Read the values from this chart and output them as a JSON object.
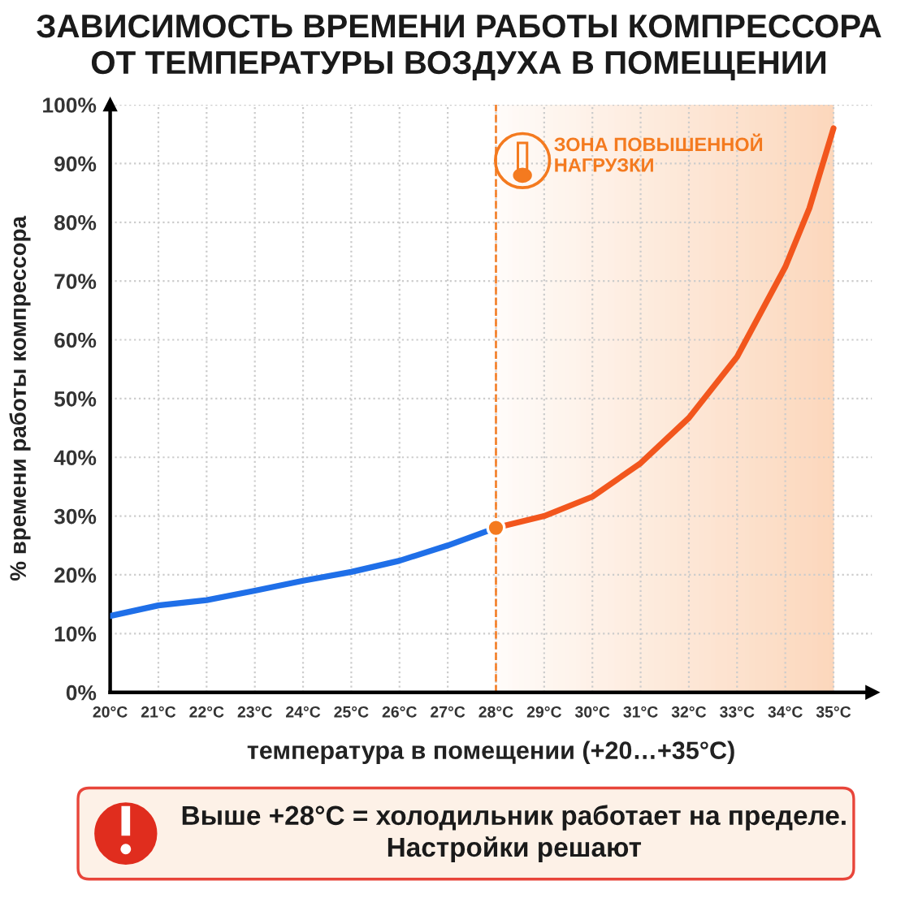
{
  "chart_data": {
    "type": "line",
    "title": "ЗАВИСИМОСТЬ ВРЕМЕНИ РАБОТЫ КОМПРЕССОРА\nОТ ТЕМПЕРАТУРЫ ВОЗДУХА В ПОМЕЩЕНИИ",
    "xlabel": "температура в помещении (+20…+35°C)",
    "ylabel": "% времени работы компрессора",
    "series": [
      {
        "color": "#1f6fe8",
        "x": [
          20,
          21,
          22,
          23,
          24,
          25,
          26,
          27,
          28
        ],
        "values": [
          13,
          14.8,
          15.7,
          17.3,
          19,
          20.5,
          22.4,
          25,
          28
        ]
      },
      {
        "color": "#f2561d",
        "x": [
          28,
          29,
          30,
          31,
          32,
          33,
          34,
          34.5,
          35
        ],
        "values": [
          28,
          30,
          33.3,
          39,
          46.7,
          57.1,
          72.4,
          82.4,
          96
        ]
      },
      {
        "type": "scatter",
        "color": "#f47a1f",
        "x": [
          28
        ],
        "values": [
          28
        ],
        "marker": "circle"
      }
    ],
    "xlim": [
      20,
      35.8
    ],
    "ylim": [
      0,
      100
    ],
    "xticks": [
      {
        "value": 20,
        "label": "20°C"
      },
      {
        "value": 21,
        "label": "21°C"
      },
      {
        "value": 22,
        "label": "22°C"
      },
      {
        "value": 23,
        "label": "23°C"
      },
      {
        "value": 24,
        "label": "24°C"
      },
      {
        "value": 25,
        "label": "25°C"
      },
      {
        "value": 26,
        "label": "26°C"
      },
      {
        "value": 27,
        "label": "27°C"
      },
      {
        "value": 28,
        "label": "28°C"
      },
      {
        "value": 29,
        "label": "29°C"
      },
      {
        "value": 30,
        "label": "30°C"
      },
      {
        "value": 31,
        "label": "31°C"
      },
      {
        "value": 32,
        "label": "32°C"
      },
      {
        "value": 33,
        "label": "33°C"
      },
      {
        "value": 34,
        "label": "34°C"
      },
      {
        "value": 35,
        "label": "35°C"
      }
    ],
    "yticks": [
      {
        "value": 0,
        "label": "0%"
      },
      {
        "value": 10,
        "label": "10%"
      },
      {
        "value": 20,
        "label": "20%"
      },
      {
        "value": 30,
        "label": "30%"
      },
      {
        "value": 40,
        "label": "40%"
      },
      {
        "value": 50,
        "label": "50%"
      },
      {
        "value": 60,
        "label": "60%"
      },
      {
        "value": 70,
        "label": "70%"
      },
      {
        "value": 80,
        "label": "80%"
      },
      {
        "value": 90,
        "label": "90%"
      },
      {
        "value": 100,
        "label": "100%"
      }
    ],
    "bands": [
      {
        "axis": "x",
        "from": 28,
        "to": 35,
        "label": "ЗОНА ПОВЫШЕННОЙ\nНАГРУЗКИ",
        "color": "#f47a1f"
      }
    ],
    "ref_lines": [
      {
        "axis": "x",
        "value": 28,
        "color": "#f47a1f",
        "line_style": "dashed"
      }
    ],
    "annotations": [
      "Выше +28°C = холодильник работает на пределе.\nНастройки решают"
    ],
    "grid": true,
    "line_style": "solid",
    "marker": "none",
    "legend": false
  }
}
